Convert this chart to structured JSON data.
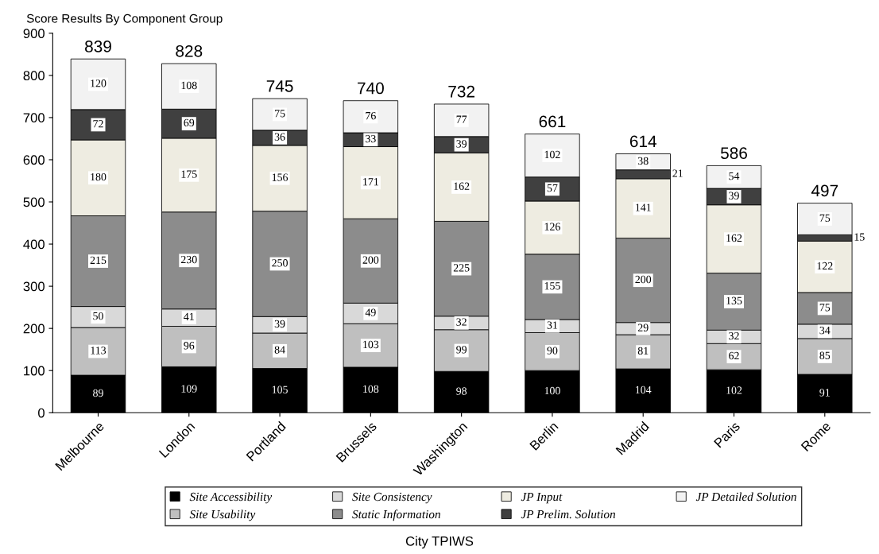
{
  "chart_data": {
    "type": "bar",
    "stacked": true,
    "title": "Score Results By Component Group",
    "xlabel": "City TPIWS",
    "categories": [
      "Melbourne",
      "London",
      "Portland",
      "Brussels",
      "Washington",
      "Berlin",
      "Madrid",
      "Paris",
      "Rome"
    ],
    "series": [
      {
        "name": "Site Accessibility",
        "color": "#000000",
        "values": [
          89,
          109,
          105,
          108,
          98,
          100,
          104,
          102,
          91
        ]
      },
      {
        "name": "Site Usability",
        "color": "#bfbfbf",
        "values": [
          113,
          96,
          84,
          103,
          99,
          90,
          81,
          62,
          85
        ]
      },
      {
        "name": "Site Consistency",
        "color": "#d9d9d9",
        "values": [
          50,
          41,
          39,
          49,
          32,
          31,
          29,
          32,
          34
        ]
      },
      {
        "name": "Static Information",
        "color": "#8c8c8c",
        "values": [
          215,
          230,
          250,
          200,
          225,
          155,
          200,
          135,
          75
        ]
      },
      {
        "name": "JP Input",
        "color": "#eeece1",
        "values": [
          180,
          175,
          156,
          171,
          162,
          126,
          141,
          162,
          122
        ]
      },
      {
        "name": "JP Prelim. Solution",
        "color": "#404040",
        "values": [
          72,
          69,
          36,
          33,
          39,
          57,
          21,
          39,
          15
        ]
      },
      {
        "name": "JP Detailed Solution",
        "color": "#f2f2f2",
        "values": [
          120,
          108,
          75,
          76,
          77,
          102,
          38,
          54,
          75
        ]
      }
    ],
    "totals": [
      "839",
      "828",
      "745",
      "740",
      "732",
      "661",
      "614",
      "586",
      "497"
    ],
    "data_labels": true,
    "ylim": [
      0,
      900
    ],
    "yticks": [
      0,
      100,
      200,
      300,
      400,
      500,
      600,
      700,
      800,
      900
    ],
    "grid": false,
    "legend": "bottom"
  }
}
